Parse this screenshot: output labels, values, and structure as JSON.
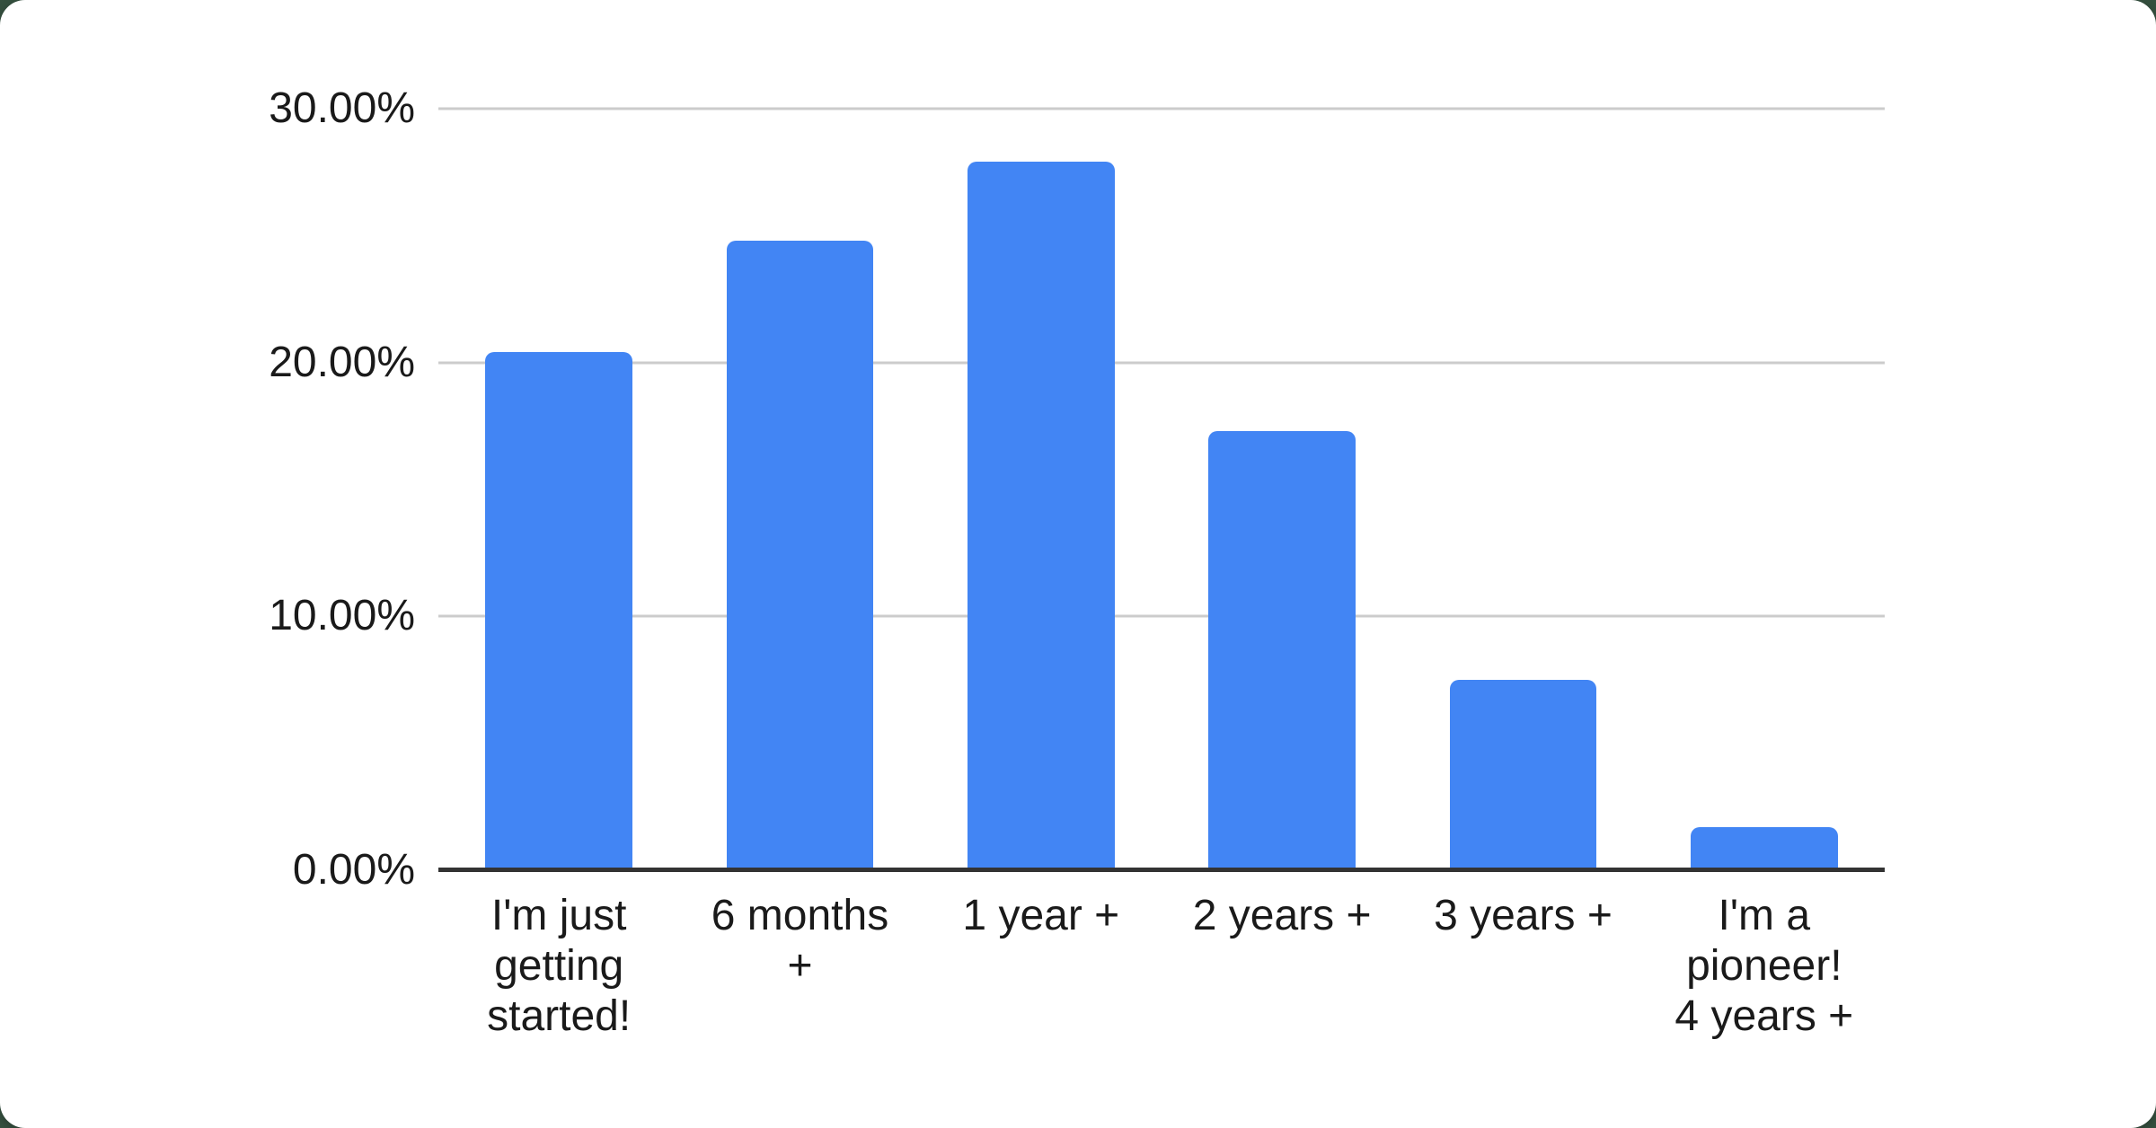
{
  "page": {
    "background_color": "#35503f",
    "card_color": "#ffffff"
  },
  "chart_data": {
    "type": "bar",
    "title": "",
    "xlabel": "",
    "ylabel": "",
    "categories": [
      "I'm just getting started!",
      "6 months +",
      "1 year +",
      "2 years +",
      "3 years +",
      "I'm a pioneer! 4 years +"
    ],
    "categories_wrapped": [
      "I'm just\ngetting\nstarted!",
      "6 months\n+",
      "1 year +",
      "2 years +",
      "3 years +",
      "I'm a\npioneer!\n4 years +"
    ],
    "values": [
      20.4,
      24.8,
      27.9,
      17.3,
      7.5,
      1.7
    ],
    "unit": "%",
    "ylim": [
      0,
      30
    ],
    "yticks": [
      "30.00%",
      "20.00%",
      "10.00%",
      "0.00%"
    ],
    "ytick_values": [
      30,
      20,
      10,
      0
    ],
    "grid": true,
    "legend": false,
    "bar_color": "#4285F4",
    "gridline_color": "#cccccc",
    "axis_color": "#333333",
    "text_color": "#1a1a1a"
  }
}
